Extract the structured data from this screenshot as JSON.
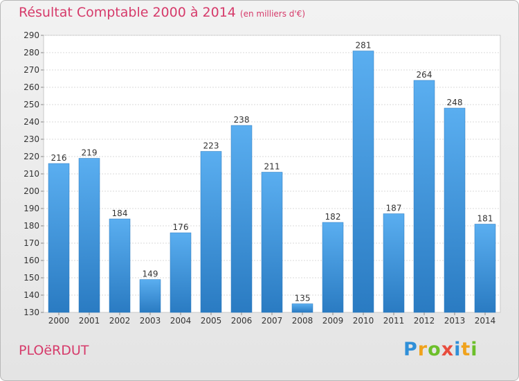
{
  "header": {
    "title": "Résultat Comptable 2000 à 2014",
    "subtitle": "(en milliers d'€)"
  },
  "footer": {
    "commune": "PLOëRDUT",
    "logo_letters": [
      "P",
      "r",
      "o",
      "x",
      "i",
      "t",
      "i"
    ],
    "logo_colors": [
      "#2f8fd8",
      "#f0a21c",
      "#6cbf2a",
      "#e84c3d",
      "#2f8fd8",
      "#f0a21c",
      "#6cbf2a"
    ]
  },
  "chart_data": {
    "type": "bar",
    "title": "Résultat Comptable 2000 à 2014",
    "subtitle": "(en milliers d'€)",
    "categories": [
      "2000",
      "2001",
      "2002",
      "2003",
      "2004",
      "2005",
      "2006",
      "2007",
      "2008",
      "2009",
      "2010",
      "2011",
      "2012",
      "2013",
      "2014"
    ],
    "values": [
      216,
      219,
      184,
      149,
      176,
      223,
      238,
      211,
      135,
      182,
      281,
      187,
      264,
      248,
      181
    ],
    "ylim": [
      130,
      290
    ],
    "ytick_step": 10,
    "grid": true,
    "bar_color_top": "#5aaef0",
    "bar_color_bottom": "#2a7bc2"
  }
}
